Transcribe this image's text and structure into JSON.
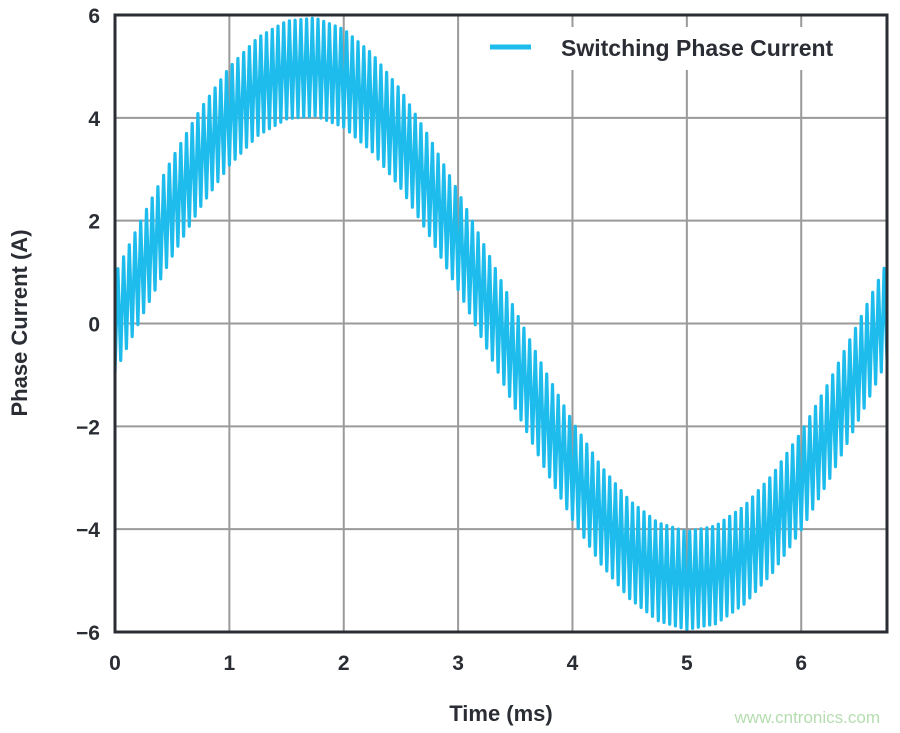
{
  "chart_data": {
    "type": "line",
    "title": "",
    "xlabel": "Time (ms)",
    "ylabel": "Phase Current (A)",
    "xlim": [
      0,
      6.75
    ],
    "ylim": [
      -6,
      6
    ],
    "xticks": [
      0,
      1,
      2,
      3,
      4,
      5,
      6
    ],
    "yticks": [
      6,
      4,
      2,
      0,
      -2,
      -4,
      -6
    ],
    "xtick_labels": [
      "0",
      "1",
      "2",
      "3",
      "4",
      "5",
      "6"
    ],
    "ytick_labels": [
      "6",
      "4",
      "2",
      "0",
      "−2",
      "−4",
      "−6"
    ],
    "grid": true,
    "legend_position": "top-right",
    "series": [
      {
        "name": "Switching Phase Current",
        "color": "#1dbcec",
        "switching_period_ms": 0.05,
        "ripple_amplitude": 0.95,
        "center_x": [
          0,
          0.25,
          0.5,
          0.75,
          1.0,
          1.25,
          1.5,
          1.75,
          2.0,
          2.25,
          2.5,
          2.75,
          3.0,
          3.25,
          3.5,
          3.75,
          4.0,
          4.25,
          4.5,
          4.75,
          5.0,
          5.25,
          5.5,
          5.75,
          6.0,
          6.25,
          6.5,
          6.75
        ],
        "center_y": [
          0,
          1.16,
          2.26,
          3.23,
          4.03,
          4.61,
          4.93,
          4.99,
          4.77,
          4.29,
          3.58,
          2.66,
          1.61,
          0.47,
          -0.7,
          -1.83,
          -2.86,
          -3.73,
          -4.4,
          -4.83,
          -5.0,
          -4.89,
          -4.51,
          -3.89,
          -3.06,
          -2.06,
          -0.93,
          0.24
        ]
      }
    ]
  },
  "watermark": "www.cntronics.com"
}
